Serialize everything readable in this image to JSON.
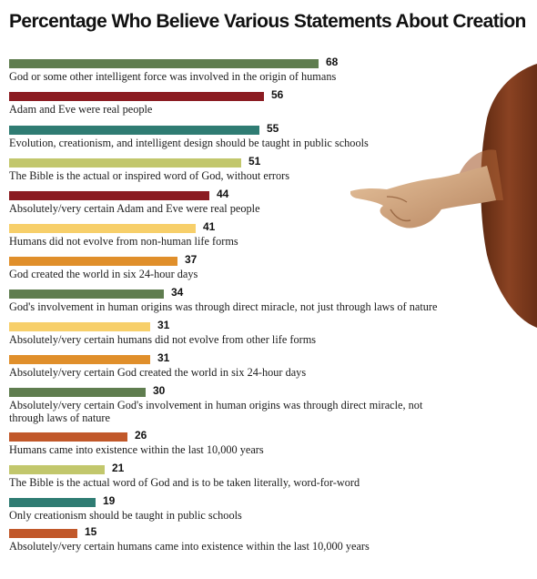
{
  "chart_data": {
    "type": "bar",
    "orientation": "horizontal",
    "title": "Percentage Who Believe Various Statements About Creation",
    "xlim": [
      0,
      100
    ],
    "grid": false,
    "legend": "none",
    "categories": [
      "God or some other intelligent force was involved in the origin of humans",
      "Adam and Eve were real people",
      "Evolution, creationism, and intelligent design should be taught in public schools",
      "The Bible is the actual or inspired word of God, without errors",
      "Absolutely/very certain Adam and Eve were real people",
      "Humans did not evolve from non-human life forms",
      "God created the world in six 24-hour days",
      "God's involvement in human origins was through direct miracle, not just through laws of nature",
      "Absolutely/very certain humans did not evolve from other life forms",
      "Absolutely/very certain God created the world in six 24-hour days",
      "Absolutely/very certain God's involvement in human origins was through direct miracle, not through laws of nature",
      "Humans came into existence within the last 10,000 years",
      "The Bible is the actual word of God and is to be taken literally, word-for-word",
      "Only creationism should be taught in public schools",
      "Absolutely/very certain humans came into existence within the last 10,000 years"
    ],
    "values": [
      68,
      56,
      55,
      51,
      44,
      41,
      37,
      34,
      31,
      31,
      30,
      26,
      21,
      19,
      15
    ],
    "value_labels": [
      "68",
      "56",
      "55",
      "51",
      "44",
      "41",
      "37",
      "34",
      "31",
      "31",
      "30",
      "26",
      "21",
      "19",
      "15"
    ],
    "bar_colors": [
      "#5f7d4f",
      "#8b1c22",
      "#2f7c73",
      "#c2c76c",
      "#8b1c22",
      "#f7cf6a",
      "#e08f2b",
      "#5f7d4f",
      "#f7cf6a",
      "#e08f2b",
      "#5f7d4f",
      "#c1582a",
      "#c2c76c",
      "#2f7c73",
      "#c1582a"
    ]
  }
}
